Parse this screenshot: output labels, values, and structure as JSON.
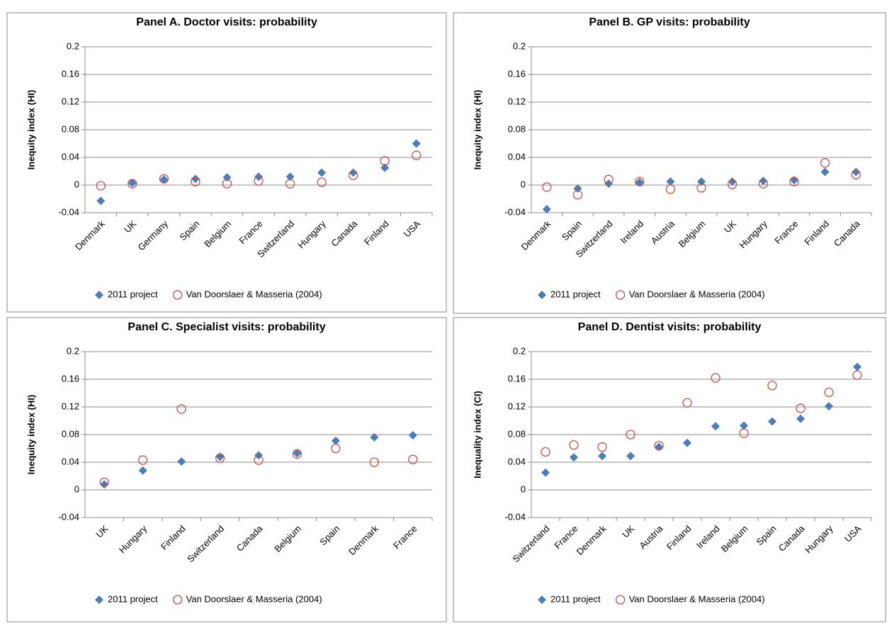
{
  "chart_data": [
    {
      "type": "scatter",
      "title": "Panel A. Doctor visits: probability",
      "y_label": "Inequity index (HI)",
      "categories": [
        "Denmark",
        "UK",
        "Germany",
        "Spain",
        "Belgium",
        "France",
        "Switzerland",
        "Hungary",
        "Canada",
        "Finland",
        "USA"
      ],
      "series": [
        {
          "name": "2011 project",
          "color": "#4a7ebb",
          "marker": "diamond",
          "values": [
            -0.023,
            0.003,
            0.008,
            0.009,
            0.011,
            0.012,
            0.012,
            0.018,
            0.018,
            0.025,
            0.06
          ]
        },
        {
          "name": "Van Doorslaer & Masseria (2004)",
          "color": "#c0504d",
          "marker": "circle",
          "values": [
            -0.001,
            0.002,
            0.009,
            0.005,
            0.002,
            0.006,
            0.002,
            0.004,
            0.014,
            0.035,
            0.043
          ]
        }
      ],
      "ylim": [
        -0.04,
        0.2
      ],
      "yticks": [
        -0.04,
        0,
        0.04,
        0.08,
        0.12,
        0.16,
        0.2
      ],
      "grid": true,
      "legend": "bottom"
    },
    {
      "type": "scatter",
      "title": "Panel B. GP visits: probability",
      "y_label": "Inequity index (HI)",
      "categories": [
        "Denmark",
        "Spain",
        "Switzerland",
        "Ireland",
        "Austria",
        "Belgium",
        "UK",
        "Hungary",
        "France",
        "Finland",
        "Canada"
      ],
      "series": [
        {
          "name": "2011 project",
          "color": "#4a7ebb",
          "marker": "diamond",
          "values": [
            -0.035,
            -0.005,
            0.002,
            0.004,
            0.005,
            0.005,
            0.005,
            0.006,
            0.007,
            0.019,
            0.019
          ]
        },
        {
          "name": "Van Doorslaer & Masseria (2004)",
          "color": "#c0504d",
          "marker": "circle",
          "values": [
            -0.003,
            -0.014,
            0.008,
            0.005,
            -0.006,
            -0.004,
            0.001,
            0.002,
            0.005,
            0.032,
            0.015
          ]
        }
      ],
      "ylim": [
        -0.04,
        0.2
      ],
      "yticks": [
        -0.04,
        0,
        0.04,
        0.08,
        0.12,
        0.16,
        0.2
      ],
      "grid": true,
      "legend": "bottom"
    },
    {
      "type": "scatter",
      "title": "Panel C. Specialist visits: probability",
      "y_label": "Inequity index (HI)",
      "categories": [
        "UK",
        "Hungary",
        "Finland",
        "Switzerland",
        "Canada",
        "Belgium",
        "Spain",
        "Denmark",
        "France"
      ],
      "series": [
        {
          "name": "2011 project",
          "color": "#4a7ebb",
          "marker": "diamond",
          "values": [
            0.008,
            0.028,
            0.041,
            0.048,
            0.05,
            0.053,
            0.071,
            0.076,
            0.079
          ]
        },
        {
          "name": "Van Doorslaer & Masseria (2004)",
          "color": "#c0504d",
          "marker": "circle",
          "values": [
            0.011,
            0.043,
            0.117,
            0.046,
            0.043,
            0.052,
            0.06,
            0.04,
            0.044
          ]
        }
      ],
      "ylim": [
        -0.04,
        0.2
      ],
      "yticks": [
        -0.04,
        0,
        0.04,
        0.08,
        0.12,
        0.16,
        0.2
      ],
      "grid": true,
      "legend": "bottom"
    },
    {
      "type": "scatter",
      "title": "Panel D. Dentist visits: probability",
      "y_label": "Inequality index (CI)",
      "categories": [
        "Switzerland",
        "France",
        "Denmark",
        "UK",
        "Austria",
        "Finland",
        "Ireland",
        "Belgium",
        "Spain",
        "Canada",
        "Hungary",
        "USA"
      ],
      "series": [
        {
          "name": "2011 project",
          "color": "#4a7ebb",
          "marker": "diamond",
          "values": [
            0.025,
            0.047,
            0.049,
            0.049,
            0.062,
            0.068,
            0.092,
            0.093,
            0.099,
            0.103,
            0.121,
            0.178
          ]
        },
        {
          "name": "Van Doorslaer & Masseria (2004)",
          "color": "#c0504d",
          "marker": "circle",
          "values": [
            0.055,
            0.065,
            0.062,
            0.08,
            0.064,
            0.126,
            0.162,
            0.082,
            0.151,
            0.118,
            0.141,
            0.166
          ]
        }
      ],
      "ylim": [
        -0.04,
        0.2
      ],
      "yticks": [
        -0.04,
        0,
        0.04,
        0.08,
        0.12,
        0.16,
        0.2
      ],
      "grid": true,
      "legend": "bottom"
    }
  ]
}
